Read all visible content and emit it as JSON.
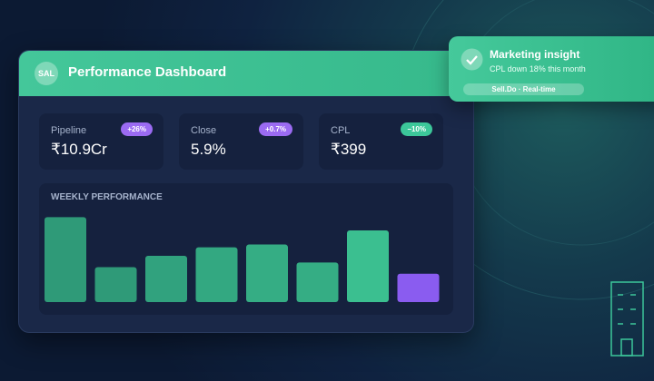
{
  "dashboard": {
    "avatar": "SAL",
    "title": "Performance Dashboard",
    "kpis": [
      {
        "label": "Pipeline",
        "value": "₹10.9Cr",
        "change": "+26%",
        "badge_color": "#9b6bf2"
      },
      {
        "label": "Close",
        "value": "5.9%",
        "change": "+0.7%",
        "badge_color": "#9b6bf2"
      },
      {
        "label": "CPL",
        "value": "₹399",
        "change": "−10%",
        "badge_color": "#3cc79a"
      }
    ],
    "chart_data": {
      "type": "bar",
      "title": "WEEKLY PERFORMANCE",
      "values": [
        90,
        37,
        49,
        58,
        61,
        42,
        76,
        30
      ],
      "colors": [
        "#2f9a78",
        "#2f9a78",
        "#31a27e",
        "#33a881",
        "#35ad84",
        "#35ad84",
        "#3bbf90",
        "#8a5cf0"
      ],
      "ylim": [
        0,
        100
      ]
    }
  },
  "notification": {
    "title": "Marketing insight",
    "message": "CPL down 18% this month",
    "tag": "Sell.Do · Real-time"
  }
}
